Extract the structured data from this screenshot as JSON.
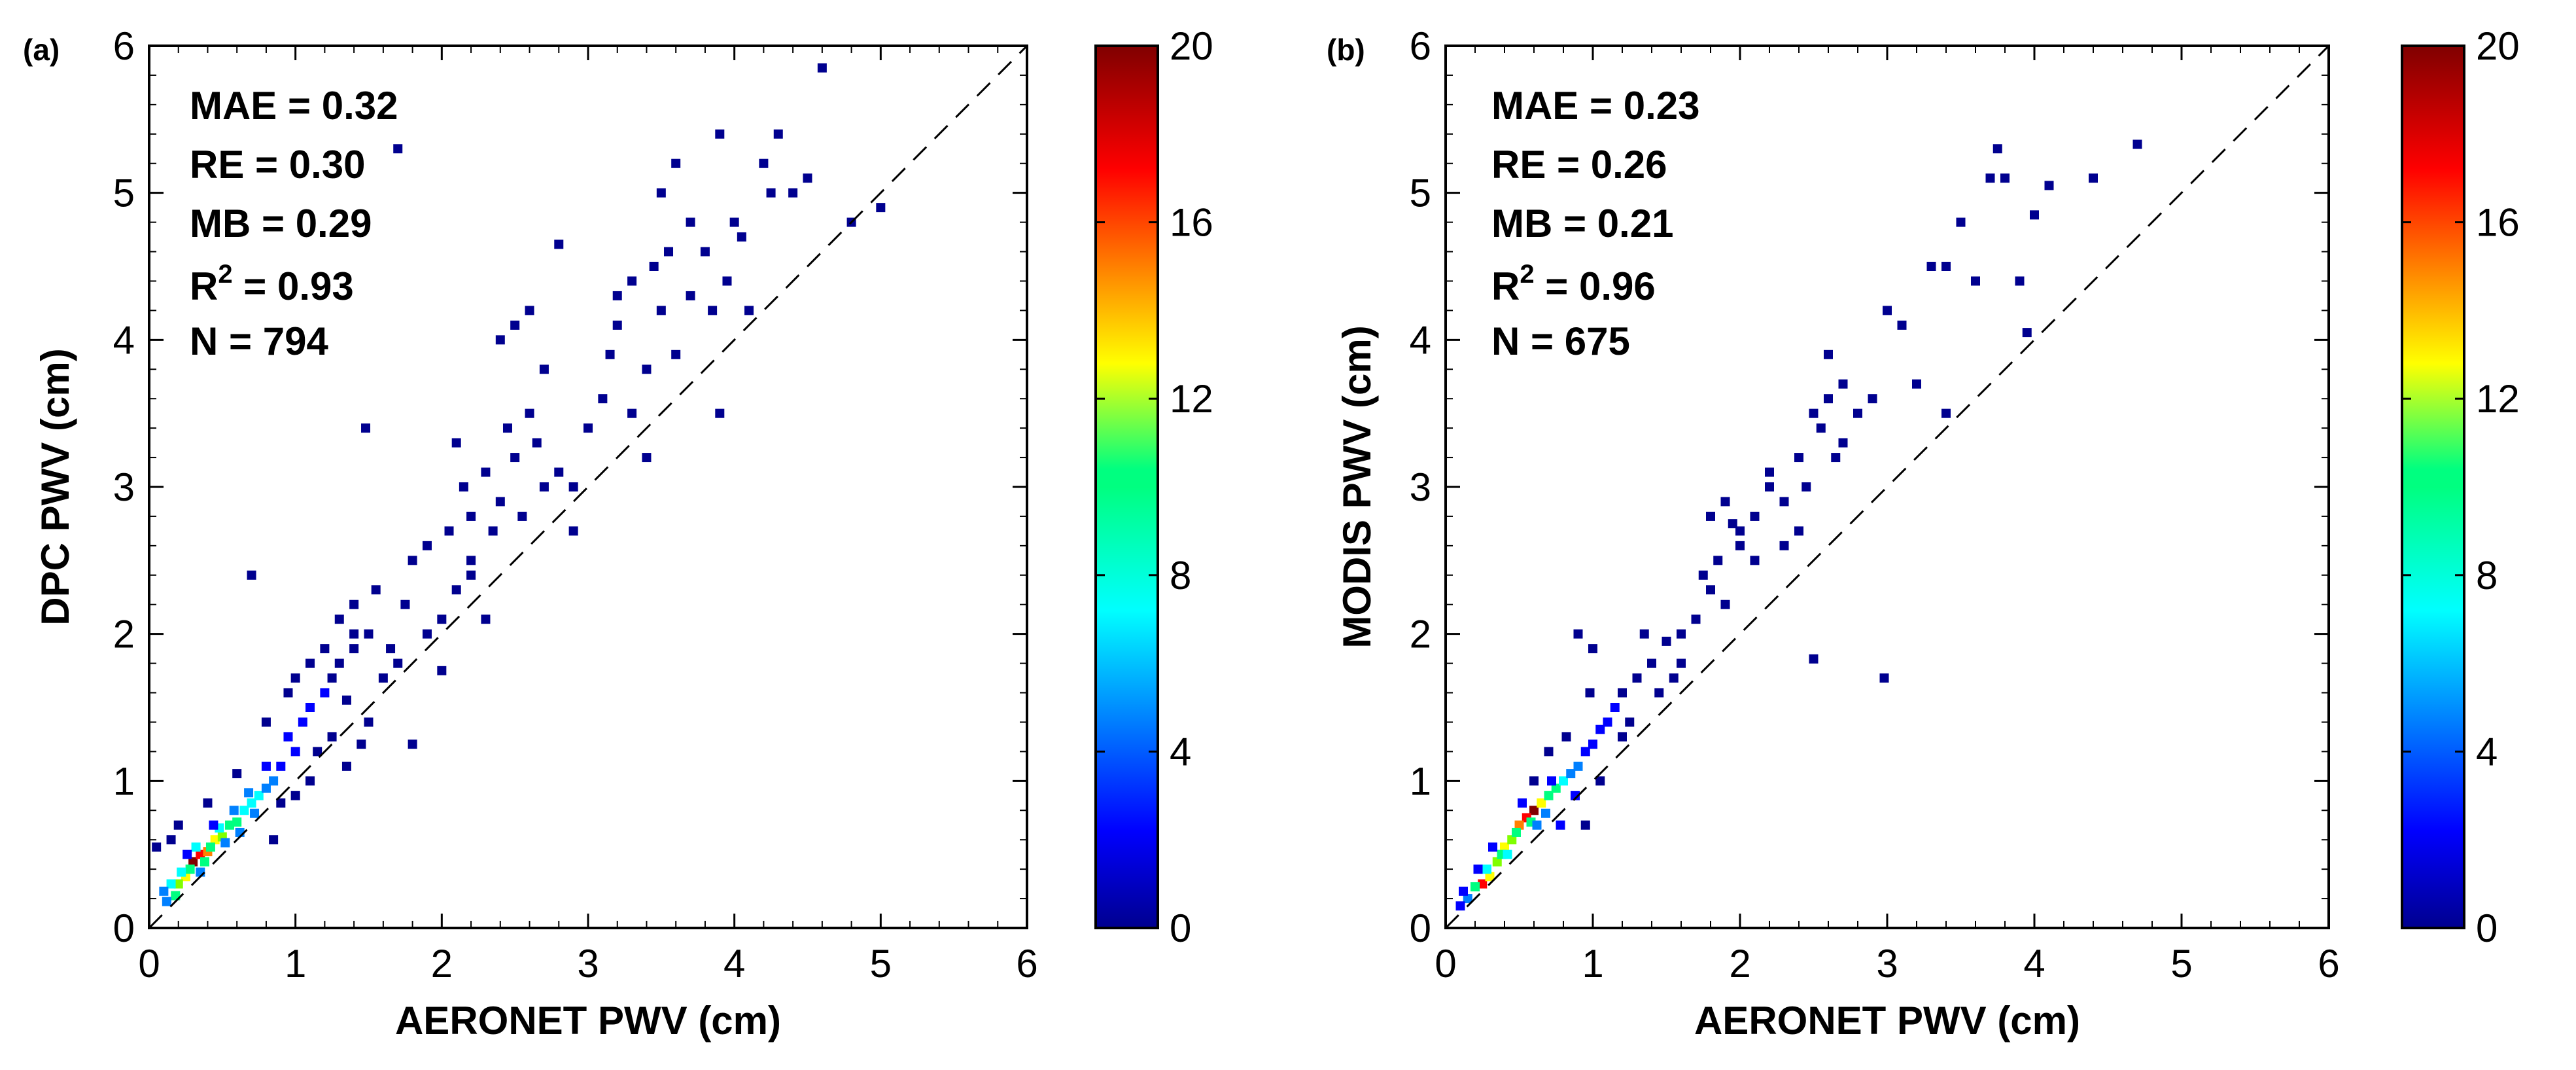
{
  "colormap": [
    "#00008f",
    "#0000ff",
    "#0080ff",
    "#00ffff",
    "#00ff80",
    "#80ff00",
    "#ffff00",
    "#ff8000",
    "#ff0000",
    "#800000"
  ],
  "chart_data": [
    {
      "type": "scatter",
      "panel_label": "(a)",
      "xlabel": "AERONET PWV (cm)",
      "ylabel": "DPC PWV (cm)",
      "xlim": [
        0,
        6
      ],
      "ylim": [
        0,
        6
      ],
      "xticks": [
        "0",
        "1",
        "2",
        "3",
        "4",
        "5",
        "6"
      ],
      "yticks": [
        "0",
        "1",
        "2",
        "3",
        "4",
        "5",
        "6"
      ],
      "one_to_one_line": true,
      "stats": {
        "mae": "MAE = 0.32",
        "re": "RE = 0.30",
        "mb": "MB = 0.29",
        "r2_prefix": "R",
        "r2_value": " = 0.93",
        "n": "N = 794"
      },
      "colorbar": {
        "range": [
          0,
          20
        ],
        "ticks": [
          "0",
          "4",
          "8",
          "12",
          "16",
          "20"
        ]
      },
      "points": [
        [
          0.3,
          0.45,
          20
        ],
        [
          0.35,
          0.5,
          17
        ],
        [
          0.4,
          0.52,
          14
        ],
        [
          0.25,
          0.35,
          13
        ],
        [
          0.45,
          0.6,
          12
        ],
        [
          0.5,
          0.62,
          11
        ],
        [
          0.2,
          0.3,
          10
        ],
        [
          0.55,
          0.7,
          9
        ],
        [
          0.6,
          0.72,
          9
        ],
        [
          0.18,
          0.22,
          8
        ],
        [
          0.65,
          0.8,
          7
        ],
        [
          0.7,
          0.85,
          7
        ],
        [
          0.15,
          0.3,
          7
        ],
        [
          0.28,
          0.4,
          8
        ],
        [
          0.38,
          0.45,
          9
        ],
        [
          0.42,
          0.55,
          8
        ],
        [
          0.75,
          0.9,
          6
        ],
        [
          0.8,
          0.95,
          5
        ],
        [
          0.85,
          1.0,
          4
        ],
        [
          0.22,
          0.38,
          6
        ],
        [
          0.32,
          0.55,
          6
        ],
        [
          0.48,
          0.68,
          6
        ],
        [
          0.58,
          0.8,
          5
        ],
        [
          0.68,
          0.92,
          4
        ],
        [
          0.9,
          1.1,
          3
        ],
        [
          1.0,
          1.2,
          3
        ],
        [
          0.12,
          0.18,
          5
        ],
        [
          0.1,
          0.25,
          4
        ],
        [
          0.35,
          0.38,
          5
        ],
        [
          0.52,
          0.58,
          5
        ],
        [
          0.62,
          0.65,
          4
        ],
        [
          0.72,
          0.78,
          4
        ],
        [
          0.44,
          0.7,
          3
        ],
        [
          0.26,
          0.5,
          3
        ],
        [
          0.8,
          1.1,
          2
        ],
        [
          0.95,
          1.3,
          2
        ],
        [
          1.05,
          1.4,
          2
        ],
        [
          1.1,
          1.5,
          2
        ],
        [
          1.2,
          1.6,
          2
        ],
        [
          1.3,
          1.8,
          1
        ],
        [
          1.25,
          1.3,
          1
        ],
        [
          1.4,
          1.9,
          1
        ],
        [
          1.5,
          2.0,
          1
        ],
        [
          1.35,
          1.55,
          1
        ],
        [
          1.15,
          1.2,
          1
        ],
        [
          0.9,
          0.85,
          1
        ],
        [
          0.6,
          1.05,
          1
        ],
        [
          0.4,
          0.85,
          1
        ],
        [
          0.7,
          2.4,
          1
        ],
        [
          1.48,
          3.4,
          1
        ],
        [
          1.7,
          5.3,
          1
        ],
        [
          0.05,
          0.55,
          1
        ],
        [
          0.15,
          0.6,
          1
        ],
        [
          0.2,
          0.7,
          1
        ],
        [
          0.85,
          0.6,
          1
        ],
        [
          1.0,
          0.9,
          1
        ],
        [
          1.1,
          1.0,
          1
        ],
        [
          1.35,
          1.1,
          1
        ],
        [
          1.45,
          1.25,
          1
        ],
        [
          1.4,
          2.2,
          1
        ],
        [
          1.55,
          2.3,
          1
        ],
        [
          1.6,
          1.7,
          1
        ],
        [
          1.7,
          1.8,
          1
        ],
        [
          1.8,
          2.5,
          1
        ],
        [
          1.9,
          2.6,
          1
        ],
        [
          2.0,
          2.1,
          1
        ],
        [
          2.1,
          2.3,
          1
        ],
        [
          2.2,
          2.4,
          1
        ],
        [
          2.3,
          3.1,
          1
        ],
        [
          2.4,
          2.9,
          1
        ],
        [
          2.5,
          3.2,
          1
        ],
        [
          2.6,
          3.5,
          1
        ],
        [
          2.0,
          1.75,
          1
        ],
        [
          2.1,
          3.3,
          1
        ],
        [
          2.2,
          2.5,
          1
        ],
        [
          2.3,
          2.1,
          1
        ],
        [
          2.7,
          3.0,
          1
        ],
        [
          2.8,
          3.1,
          1
        ],
        [
          2.9,
          2.7,
          1
        ],
        [
          2.8,
          4.65,
          1
        ],
        [
          2.5,
          4.1,
          1
        ],
        [
          2.6,
          4.2,
          1
        ],
        [
          2.4,
          4.0,
          1
        ],
        [
          2.7,
          3.8,
          1
        ],
        [
          3.0,
          3.4,
          1
        ],
        [
          3.1,
          3.6,
          1
        ],
        [
          3.2,
          4.1,
          1
        ],
        [
          3.3,
          3.5,
          1
        ],
        [
          3.4,
          3.8,
          1
        ],
        [
          3.5,
          4.2,
          1
        ],
        [
          3.6,
          3.9,
          1
        ],
        [
          3.2,
          4.3,
          1
        ],
        [
          3.3,
          4.4,
          1
        ],
        [
          3.5,
          5.0,
          1
        ],
        [
          3.6,
          5.2,
          1
        ],
        [
          3.7,
          4.8,
          1
        ],
        [
          3.8,
          4.6,
          1
        ],
        [
          3.9,
          5.4,
          1
        ],
        [
          4.0,
          4.8,
          1
        ],
        [
          4.1,
          4.2,
          1
        ],
        [
          4.2,
          5.2,
          1
        ],
        [
          4.3,
          5.4,
          1
        ],
        [
          4.4,
          5.0,
          1
        ],
        [
          4.6,
          5.85,
          1
        ],
        [
          4.5,
          5.1,
          1
        ],
        [
          4.8,
          4.8,
          1
        ],
        [
          5.0,
          4.9,
          1
        ],
        [
          3.9,
          3.5,
          1
        ],
        [
          3.4,
          3.2,
          1
        ],
        [
          3.7,
          4.3,
          1
        ],
        [
          2.9,
          3.0,
          1
        ],
        [
          2.2,
          2.8,
          1
        ],
        [
          1.9,
          2.0,
          1
        ],
        [
          1.8,
          1.25,
          1
        ],
        [
          1.4,
          2.0,
          1
        ],
        [
          1.2,
          1.9,
          1
        ],
        [
          1.3,
          2.1,
          1
        ],
        [
          0.8,
          1.4,
          1
        ],
        [
          1.0,
          1.7,
          1
        ],
        [
          1.1,
          1.8,
          1
        ],
        [
          0.95,
          1.6,
          1
        ],
        [
          1.25,
          1.7,
          1
        ],
        [
          1.5,
          1.4,
          1
        ],
        [
          1.65,
          1.9,
          1
        ],
        [
          1.75,
          2.2,
          1
        ],
        [
          2.05,
          2.7,
          1
        ],
        [
          2.15,
          3.0,
          1
        ],
        [
          2.35,
          2.7,
          1
        ],
        [
          2.45,
          3.4,
          1
        ],
        [
          2.55,
          2.8,
          1
        ],
        [
          2.65,
          3.3,
          1
        ],
        [
          3.15,
          3.9,
          1
        ],
        [
          3.45,
          4.5,
          1
        ],
        [
          3.55,
          4.6,
          1
        ],
        [
          3.85,
          4.2,
          1
        ],
        [
          3.95,
          4.4,
          1
        ],
        [
          4.05,
          4.7,
          1
        ],
        [
          4.25,
          5.0,
          1
        ]
      ]
    },
    {
      "type": "scatter",
      "panel_label": "(b)",
      "xlabel": "AERONET PWV (cm)",
      "ylabel": "MODIS PWV (cm)",
      "xlim": [
        0,
        6
      ],
      "ylim": [
        0,
        6
      ],
      "xticks": [
        "0",
        "1",
        "2",
        "3",
        "4",
        "5",
        "6"
      ],
      "yticks": [
        "0",
        "1",
        "2",
        "3",
        "4",
        "5",
        "6"
      ],
      "one_to_one_line": true,
      "stats": {
        "mae": "MAE = 0.23",
        "re": "RE = 0.26",
        "mb": "MB = 0.21",
        "r2_prefix": "R",
        "r2_value": " = 0.96",
        "n": "N = 675"
      },
      "colorbar": {
        "range": [
          0,
          20
        ],
        "ticks": [
          "0",
          "4",
          "8",
          "12",
          "16",
          "20"
        ]
      },
      "points": [
        [
          0.6,
          0.8,
          20
        ],
        [
          0.55,
          0.75,
          17
        ],
        [
          0.5,
          0.7,
          15
        ],
        [
          0.25,
          0.3,
          16
        ],
        [
          0.3,
          0.35,
          13
        ],
        [
          0.65,
          0.85,
          12
        ],
        [
          0.4,
          0.55,
          12
        ],
        [
          0.45,
          0.6,
          11
        ],
        [
          0.35,
          0.45,
          10
        ],
        [
          0.7,
          0.9,
          9
        ],
        [
          0.2,
          0.28,
          9
        ],
        [
          0.75,
          0.95,
          8
        ],
        [
          0.48,
          0.65,
          9
        ],
        [
          0.58,
          0.72,
          8
        ],
        [
          0.38,
          0.5,
          8
        ],
        [
          0.8,
          1.0,
          6
        ],
        [
          0.85,
          1.05,
          5
        ],
        [
          0.9,
          1.1,
          4
        ],
        [
          0.15,
          0.2,
          5
        ],
        [
          0.28,
          0.4,
          6
        ],
        [
          0.42,
          0.5,
          6
        ],
        [
          0.62,
          0.7,
          5
        ],
        [
          0.68,
          0.78,
          4
        ],
        [
          0.95,
          1.2,
          3
        ],
        [
          1.0,
          1.25,
          3
        ],
        [
          0.32,
          0.55,
          3
        ],
        [
          0.52,
          0.85,
          3
        ],
        [
          0.72,
          1.0,
          3
        ],
        [
          1.05,
          1.35,
          2
        ],
        [
          1.1,
          1.4,
          2
        ],
        [
          1.15,
          1.5,
          2
        ],
        [
          0.1,
          0.15,
          3
        ],
        [
          0.12,
          0.25,
          2
        ],
        [
          0.22,
          0.4,
          2
        ],
        [
          0.78,
          0.7,
          2
        ],
        [
          0.88,
          0.9,
          2
        ],
        [
          1.2,
          1.6,
          1
        ],
        [
          1.3,
          1.7,
          1
        ],
        [
          1.4,
          1.8,
          1
        ],
        [
          1.5,
          1.95,
          1
        ],
        [
          1.35,
          2.0,
          1
        ],
        [
          0.9,
          2.0,
          1
        ],
        [
          1.0,
          1.9,
          1
        ],
        [
          1.25,
          1.4,
          1
        ],
        [
          0.95,
          0.7,
          1
        ],
        [
          1.05,
          1.0,
          1
        ],
        [
          0.98,
          1.6,
          1
        ],
        [
          1.6,
          2.0,
          1
        ],
        [
          1.7,
          2.1,
          1
        ],
        [
          1.8,
          2.3,
          1
        ],
        [
          1.9,
          2.2,
          1
        ],
        [
          1.8,
          2.8,
          1
        ],
        [
          1.95,
          2.75,
          1
        ],
        [
          2.0,
          2.6,
          1
        ],
        [
          2.1,
          2.8,
          1
        ],
        [
          2.2,
          3.0,
          1
        ],
        [
          2.3,
          2.9,
          1
        ],
        [
          2.4,
          3.2,
          1
        ],
        [
          2.5,
          3.5,
          1
        ],
        [
          2.6,
          3.6,
          1
        ],
        [
          2.7,
          3.7,
          1
        ],
        [
          2.8,
          3.5,
          1
        ],
        [
          2.5,
          1.83,
          1
        ],
        [
          2.98,
          1.7,
          1
        ],
        [
          2.6,
          3.9,
          1
        ],
        [
          2.4,
          2.7,
          1
        ],
        [
          2.3,
          2.6,
          1
        ],
        [
          2.2,
          3.1,
          1
        ],
        [
          2.1,
          2.5,
          1
        ],
        [
          2.0,
          2.7,
          1
        ],
        [
          2.7,
          3.3,
          1
        ],
        [
          2.9,
          3.6,
          1
        ],
        [
          3.0,
          4.2,
          1
        ],
        [
          3.1,
          4.1,
          1
        ],
        [
          3.2,
          3.7,
          1
        ],
        [
          3.3,
          4.5,
          1
        ],
        [
          3.4,
          4.5,
          1
        ],
        [
          3.5,
          4.8,
          1
        ],
        [
          3.6,
          4.4,
          1
        ],
        [
          3.7,
          5.1,
          1
        ],
        [
          3.75,
          5.3,
          1
        ],
        [
          3.8,
          5.1,
          1
        ],
        [
          3.9,
          4.4,
          1
        ],
        [
          4.0,
          4.85,
          1
        ],
        [
          4.1,
          5.05,
          1
        ],
        [
          4.4,
          5.1,
          1
        ],
        [
          4.7,
          5.33,
          1
        ],
        [
          3.95,
          4.05,
          1
        ],
        [
          3.4,
          3.5,
          1
        ],
        [
          1.6,
          1.8,
          1
        ],
        [
          1.45,
          1.6,
          1
        ],
        [
          1.55,
          1.7,
          1
        ],
        [
          1.75,
          2.4,
          1
        ],
        [
          1.85,
          2.5,
          1
        ],
        [
          2.45,
          3.0,
          1
        ],
        [
          2.55,
          3.4,
          1
        ],
        [
          2.65,
          3.2,
          1
        ],
        [
          1.9,
          2.9,
          1
        ],
        [
          1.2,
          1.3,
          1
        ],
        [
          0.7,
          1.2,
          1
        ],
        [
          0.6,
          1.0,
          1
        ],
        [
          0.82,
          1.3,
          1
        ]
      ]
    }
  ]
}
